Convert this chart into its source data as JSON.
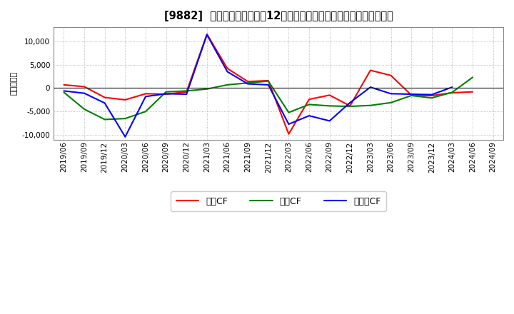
{
  "title": "[9882]  キャッシュフローの12か月移動合計の対前年同期増減額の推移",
  "ylabel": "（百万円）",
  "background_color": "#ffffff",
  "plot_bg_color": "#ffffff",
  "grid_color": "#aaaaaa",
  "x_labels": [
    "2019/06",
    "2019/09",
    "2019/12",
    "2020/03",
    "2020/06",
    "2020/09",
    "2020/12",
    "2021/03",
    "2021/06",
    "2021/09",
    "2021/12",
    "2022/03",
    "2022/06",
    "2022/09",
    "2022/12",
    "2023/03",
    "2023/06",
    "2023/09",
    "2023/12",
    "2024/03",
    "2024/06",
    "2024/09"
  ],
  "operating_cf": [
    700,
    300,
    -2000,
    -2500,
    -1200,
    -1300,
    -800,
    11500,
    4200,
    1400,
    1600,
    -9800,
    -2400,
    -1500,
    -3800,
    3800,
    2700,
    -1500,
    -1600,
    -1000,
    -800,
    null
  ],
  "investing_cf": [
    -900,
    -4500,
    -6700,
    -6500,
    -5000,
    -800,
    -600,
    -200,
    700,
    1100,
    1500,
    -5200,
    -3500,
    -3800,
    -3900,
    -3700,
    -3100,
    -1600,
    -2100,
    -900,
    2300,
    null
  ],
  "free_cf": [
    -600,
    -1100,
    -3200,
    -10400,
    -1800,
    -1200,
    -1300,
    11400,
    3500,
    900,
    700,
    -7700,
    -5900,
    -7000,
    -3100,
    200,
    -1200,
    -1300,
    -1400,
    200,
    null,
    null
  ],
  "ylim": [
    -11000,
    13000
  ],
  "yticks": [
    -10000,
    -5000,
    0,
    5000,
    10000
  ],
  "operating_color": "#ff0000",
  "investing_color": "#008000",
  "free_color": "#0000ff",
  "line_width": 1.5,
  "title_fontsize": 10.5,
  "legend_labels": [
    "営業CF",
    "投資CF",
    "フリーCF"
  ]
}
